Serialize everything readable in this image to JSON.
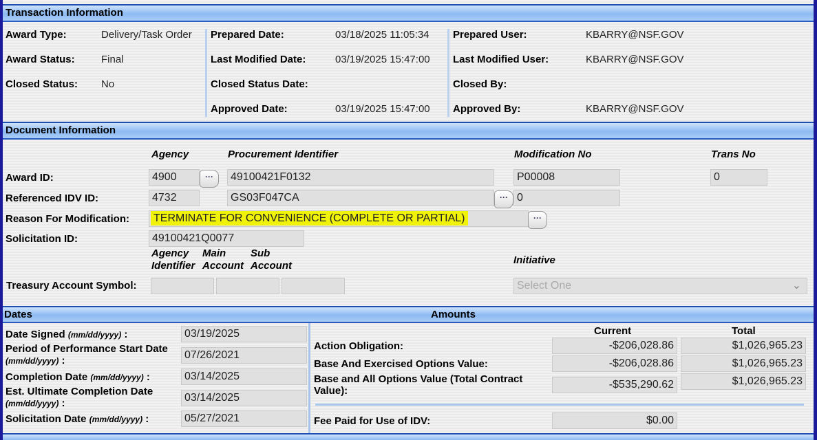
{
  "transaction": {
    "title": "Transaction Information",
    "award_type_label": "Award Type:",
    "award_type": "Delivery/Task Order",
    "award_status_label": "Award Status:",
    "award_status": "Final",
    "closed_status_label": "Closed Status:",
    "closed_status": "No",
    "prepared_date_label": "Prepared Date:",
    "prepared_date": "03/18/2025 11:05:34",
    "last_modified_date_label": "Last Modified Date:",
    "last_modified_date": "03/19/2025 15:47:00",
    "closed_status_date_label": "Closed Status Date:",
    "approved_date_label": "Approved Date:",
    "approved_date": "03/19/2025 15:47:00",
    "prepared_user_label": "Prepared User:",
    "prepared_user": "KBARRY@NSF.GOV",
    "last_modified_user_label": "Last Modified User:",
    "last_modified_user": "KBARRY@NSF.GOV",
    "closed_by_label": "Closed By:",
    "approved_by_label": "Approved By:",
    "approved_by": "KBARRY@NSF.GOV"
  },
  "document": {
    "title": "Document Information",
    "col_agency": "Agency",
    "col_proc": "Procurement Identifier",
    "col_mod": "Modification No",
    "col_trans": "Trans No",
    "award_id_label": "Award ID:",
    "award_agency": "4900",
    "award_proc": "49100421F0132",
    "award_mod": "P00008",
    "award_trans": "0",
    "idv_label": "Referenced IDV ID:",
    "idv_agency": "4732",
    "idv_proc": "GS03F047CA",
    "idv_mod": "0",
    "reason_label": "Reason For Modification:",
    "reason": "TERMINATE FOR CONVENIENCE (COMPLETE OR PARTIAL)",
    "solicitation_label": "Solicitation ID:",
    "solicitation": "49100421Q0077",
    "tas_col1": "Agency Identifier",
    "tas_col1a": "Agency",
    "tas_col1b": "Identifier",
    "tas_col2a": "Main",
    "tas_col2b": "Account",
    "tas_col3a": "Sub",
    "tas_col3b": "Account",
    "initiative_label": "Initiative",
    "initiative_placeholder": "Select One",
    "tas_label": "Treasury Account Symbol:",
    "more_button": "···"
  },
  "dates": {
    "title": "Dates",
    "fmt": "(mm/dd/yyyy)",
    "date_signed_label": "Date Signed",
    "date_signed": "03/19/2025",
    "pop_start_label": "Period of Performance Start Date",
    "pop_start": "07/26/2021",
    "completion_label": "Completion Date",
    "completion": "03/14/2025",
    "ult_completion_label": "Est. Ultimate Completion Date",
    "ult_completion": "03/14/2025",
    "solicitation_date_label": "Solicitation Date",
    "solicitation_date": "05/27/2021"
  },
  "amounts": {
    "title": "Amounts",
    "col_current": "Current",
    "col_total": "Total",
    "rows": [
      {
        "label": "Action Obligation:",
        "current": "-$206,028.86",
        "total": "$1,026,965.23"
      },
      {
        "label": "Base And Exercised Options Value:",
        "current": "-$206,028.86",
        "total": "$1,026,965.23"
      },
      {
        "label": "Base and All Options Value (Total Contract Value):",
        "current": "-$535,290.62",
        "total": "$1,026,965.23"
      }
    ],
    "fee_label": "Fee Paid for Use of IDV:",
    "fee": "$0.00"
  }
}
